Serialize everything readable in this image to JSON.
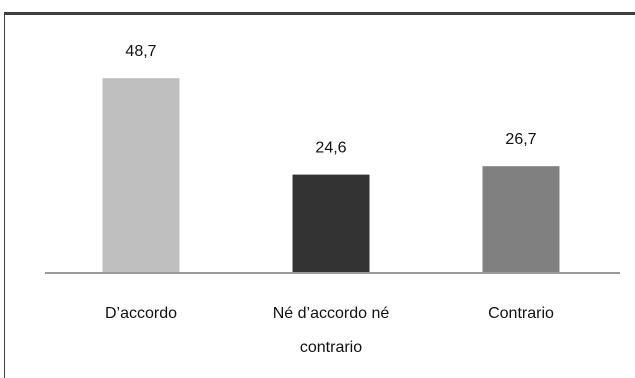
{
  "chart_data": {
    "type": "bar",
    "categories": [
      [
        "D’accordo"
      ],
      [
        "Né d’accordo né",
        "contrario"
      ],
      [
        "Contrario"
      ]
    ],
    "values": [
      48.7,
      24.6,
      26.7
    ],
    "value_labels": [
      "48,7",
      "24,6",
      "26,7"
    ],
    "colors": [
      "#bfbfbf",
      "#333333",
      "#808080"
    ],
    "title": "",
    "xlabel": "",
    "ylabel": "",
    "ylim": [
      0,
      50
    ],
    "grid": false,
    "legend": "none"
  }
}
